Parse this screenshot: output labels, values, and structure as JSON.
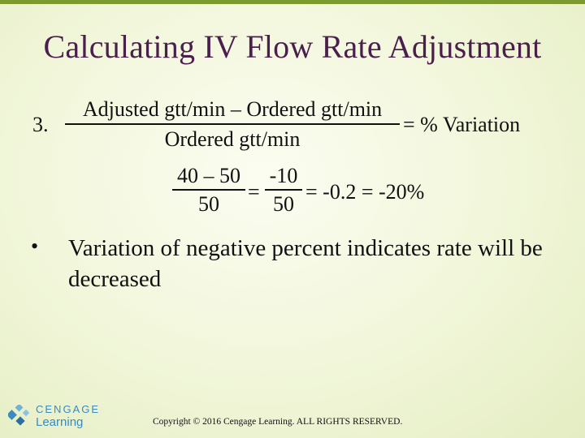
{
  "slide": {
    "title": "Calculating IV Flow Rate Adjustment",
    "step_number": "3.",
    "formula": {
      "numerator": "Adjusted gtt/min – Ordered gtt/min",
      "denominator": "Ordered gtt/min",
      "result": "= % Variation"
    },
    "calculation": {
      "frac1_numerator": "40 – 50",
      "frac1_denominator": "50",
      "equals": "=",
      "frac2_numerator": "-10",
      "frac2_denominator": "50",
      "result": "= -0.2 = -20%"
    },
    "bullet_marker": "•",
    "bullet_text": "Variation of negative percent indicates rate will be decreased",
    "logo": {
      "line1": "CENGAGE",
      "line2": "Learning"
    },
    "copyright": "Copyright © 2016 Cengage Learning. ALL RIGHTS RESERVED."
  },
  "colors": {
    "title": "#4a1f4c",
    "accent_bar": "#7d9a2f",
    "logo": "#3a8bc0",
    "background": "#f1f6d9"
  }
}
